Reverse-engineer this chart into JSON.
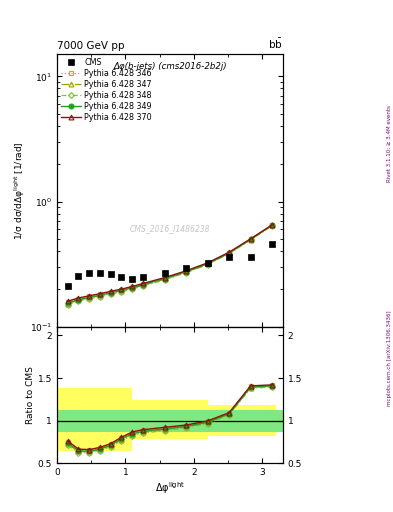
{
  "title_top": "7000 GeV pp",
  "title_top_right": "b$\\bar{\\mathrm{b}}$",
  "subtitle": "Δφ(b-jets) (cms2016-2b2j)",
  "ylabel_main": "1/σ dσ/dΔφ$^{\\mathrm{light}}$ [1/rad]",
  "ylabel_ratio": "Ratio to CMS",
  "xlabel": "Δφ$^{\\mathrm{light}}$",
  "watermark": "CMS_2016_I1486238",
  "right_label": "mcplots.cern.ch [arXiv:1306.3436]",
  "right_label2": "Rivet 3.1.10; ≥ 3.4M events",
  "cms_x": [
    0.157,
    0.314,
    0.471,
    0.628,
    0.785,
    0.942,
    1.099,
    1.257,
    1.571,
    1.885,
    2.199,
    2.513,
    2.827,
    3.142
  ],
  "cms_y": [
    0.21,
    0.255,
    0.268,
    0.268,
    0.262,
    0.248,
    0.242,
    0.248,
    0.268,
    0.295,
    0.325,
    0.36,
    0.358,
    0.46
  ],
  "dphi_x": [
    0.157,
    0.314,
    0.471,
    0.628,
    0.785,
    0.942,
    1.099,
    1.257,
    1.571,
    1.885,
    2.199,
    2.513,
    2.827,
    3.142
  ],
  "p346_y": [
    0.158,
    0.168,
    0.175,
    0.182,
    0.19,
    0.198,
    0.208,
    0.22,
    0.245,
    0.278,
    0.322,
    0.392,
    0.502,
    0.65
  ],
  "p347_y": [
    0.153,
    0.163,
    0.17,
    0.177,
    0.185,
    0.193,
    0.203,
    0.215,
    0.24,
    0.273,
    0.317,
    0.387,
    0.497,
    0.645
  ],
  "p348_y": [
    0.15,
    0.16,
    0.167,
    0.174,
    0.182,
    0.19,
    0.2,
    0.212,
    0.237,
    0.27,
    0.314,
    0.384,
    0.494,
    0.642
  ],
  "p349_y": [
    0.155,
    0.165,
    0.172,
    0.179,
    0.187,
    0.195,
    0.205,
    0.217,
    0.242,
    0.275,
    0.319,
    0.389,
    0.499,
    0.647
  ],
  "p370_y": [
    0.16,
    0.17,
    0.177,
    0.184,
    0.192,
    0.2,
    0.21,
    0.222,
    0.247,
    0.28,
    0.324,
    0.394,
    0.504,
    0.652
  ],
  "ratio_x": [
    0.157,
    0.314,
    0.471,
    0.628,
    0.785,
    0.942,
    1.099,
    1.257,
    1.571,
    1.885,
    2.199,
    2.513,
    2.827,
    3.142
  ],
  "r346_y": [
    0.752,
    0.659,
    0.653,
    0.679,
    0.725,
    0.798,
    0.86,
    0.887,
    0.914,
    0.942,
    0.991,
    1.089,
    1.402,
    1.413
  ],
  "r347_y": [
    0.729,
    0.639,
    0.634,
    0.66,
    0.706,
    0.778,
    0.838,
    0.867,
    0.896,
    0.927,
    0.975,
    1.075,
    1.388,
    1.402
  ],
  "r348_y": [
    0.714,
    0.627,
    0.623,
    0.649,
    0.694,
    0.766,
    0.826,
    0.855,
    0.884,
    0.915,
    0.966,
    1.067,
    1.38,
    1.395
  ],
  "r349_y": [
    0.738,
    0.647,
    0.642,
    0.668,
    0.713,
    0.786,
    0.847,
    0.875,
    0.903,
    0.932,
    0.982,
    1.081,
    1.394,
    1.408
  ],
  "r370_y": [
    0.762,
    0.667,
    0.661,
    0.687,
    0.732,
    0.806,
    0.868,
    0.895,
    0.922,
    0.949,
    0.997,
    1.094,
    1.408,
    1.42
  ],
  "band_x_edges": [
    0.0,
    0.471,
    1.099,
    1.571,
    2.199,
    3.2
  ],
  "yellow_low": [
    0.64,
    0.64,
    0.78,
    0.78,
    0.82,
    0.82
  ],
  "yellow_high": [
    1.38,
    1.38,
    1.24,
    1.24,
    1.18,
    1.18
  ],
  "color_346": "#c8a050",
  "color_347": "#a0a000",
  "color_348": "#80c040",
  "color_349": "#20a020",
  "color_370": "#901010",
  "ylim_main_log": [
    -1,
    1.2
  ],
  "ylim_ratio": [
    0.5,
    2.1
  ],
  "xlim": [
    0.0,
    3.3
  ]
}
